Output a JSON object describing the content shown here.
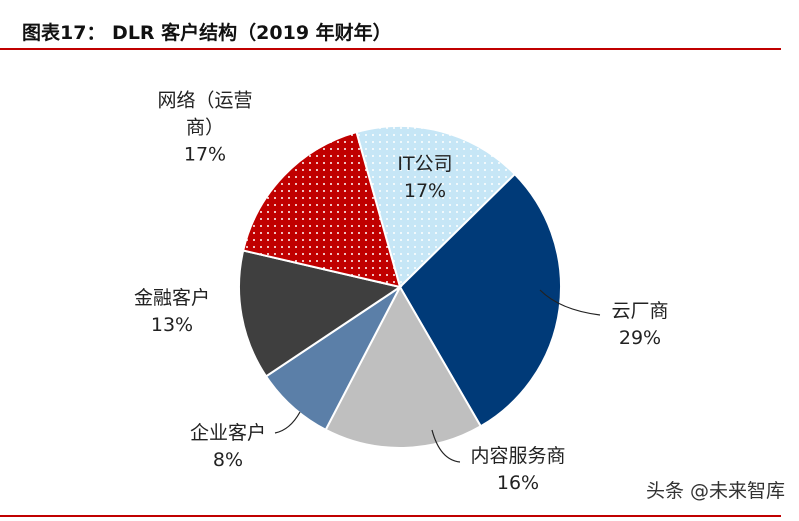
{
  "chart_data": {
    "type": "pie",
    "title": "图表17： DLR 客户结构（2019 年财年）",
    "categories": [
      "IT公司",
      "云厂商",
      "内容服务商",
      "企业客户",
      "金融客户",
      "网络（运营商）"
    ],
    "values": [
      17,
      29,
      16,
      8,
      13,
      17
    ],
    "value_labels": [
      "17%",
      "29%",
      "16%",
      "8%",
      "13%",
      "17%"
    ],
    "colors": [
      "#c6e6f6",
      "#003a78",
      "#bfbfbf",
      "#5b7fa8",
      "#3f3f3f",
      "#c00000"
    ],
    "dotted": [
      true,
      false,
      false,
      false,
      false,
      true
    ]
  },
  "watermark": "头条 @未来智库"
}
